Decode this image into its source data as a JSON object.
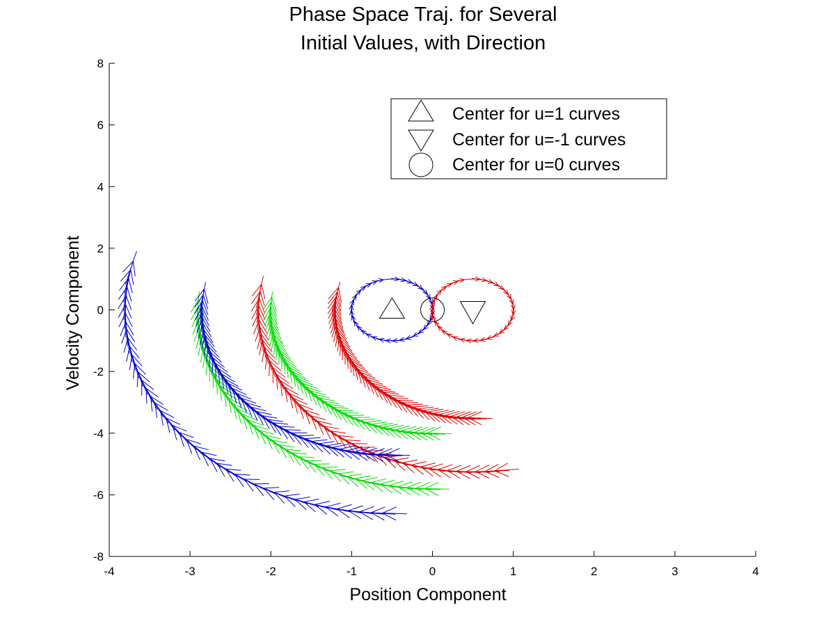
{
  "chart_data": {
    "type": "line",
    "title": [
      "Phase Space Traj. for Several",
      "Initial Values, with Direction"
    ],
    "xlabel": "Position Component",
    "ylabel": "Velocity Component",
    "xlim": [
      -4,
      4
    ],
    "ylim": [
      -8,
      8
    ],
    "xticks": [
      "-4",
      "-3",
      "-2",
      "-1",
      "0",
      "1",
      "2",
      "3",
      "4"
    ],
    "yticks": [
      "-8",
      "-6",
      "-4",
      "-2",
      "0",
      "2",
      "4",
      "6",
      "8"
    ],
    "grid": false,
    "legend_position": "top-right",
    "legend": [
      {
        "label": "Center for u=1 curves",
        "marker": "triangle-up"
      },
      {
        "label": "Center for u=-1 curves",
        "marker": "triangle-down"
      },
      {
        "label": "Center for u=0 curves",
        "marker": "circle"
      }
    ],
    "markers": [
      {
        "name": "center-u1",
        "marker": "triangle-up",
        "x": -0.5,
        "y": 0
      },
      {
        "name": "center-u-1",
        "marker": "triangle-down",
        "x": 0.5,
        "y": 0
      },
      {
        "name": "center-u0",
        "marker": "circle",
        "x": 0,
        "y": 0
      }
    ],
    "series": [
      {
        "color": "#0000cc",
        "center": [
          -0.5,
          0
        ],
        "rx": 0.5,
        "ry": 1.0,
        "start_y": -1.0,
        "end_y": 1.0
      },
      {
        "color": "#dd0000",
        "center": [
          0.5,
          0
        ],
        "rx": 0.5,
        "ry": 1.0,
        "start_y": -1.0,
        "end_y": 1.0
      },
      {
        "color": "#dd0000",
        "center": [
          0.5,
          0
        ],
        "rx": 1.7,
        "ry": 3.5,
        "start_y": -3.5,
        "end_y": 0.9
      },
      {
        "color": "#dd0000",
        "center": [
          0.5,
          0
        ],
        "rx": 2.65,
        "ry": 5.25,
        "start_y": -5.2,
        "end_y": 1.1
      },
      {
        "color": "#00dd00",
        "center": [
          0,
          0
        ],
        "rx": 2.0,
        "ry": 4.0,
        "start_y": -4.1,
        "end_y": 0.6
      },
      {
        "color": "#00dd00",
        "center": [
          0,
          0
        ],
        "rx": 2.9,
        "ry": 5.8,
        "start_y": -5.9,
        "end_y": 0.6
      },
      {
        "color": "#0000cc",
        "center": [
          -0.5,
          0
        ],
        "rx": 2.35,
        "ry": 4.7,
        "start_y": -4.7,
        "end_y": 0.9
      },
      {
        "color": "#0000cc",
        "center": [
          -0.5,
          0
        ],
        "rx": 3.3,
        "ry": 6.6,
        "start_y": -6.6,
        "end_y": 1.9
      }
    ]
  }
}
